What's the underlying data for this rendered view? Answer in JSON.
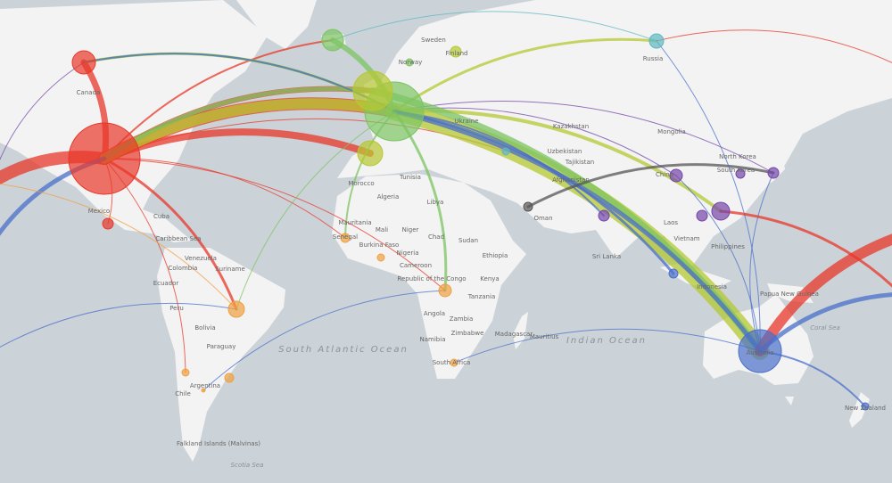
{
  "colors": {
    "ocean": "#ccd3d8",
    "land": "#f3f3f3",
    "red": "#e8372a",
    "yellow": "#b6c832",
    "green": "#7cc462",
    "blue": "#4a6fc9",
    "purple": "#7445a8",
    "orange": "#f0a040",
    "teal": "#5fb8c2",
    "grey": "#555555"
  },
  "nodes": [
    {
      "id": "usa",
      "color": "red",
      "size": 40
    },
    {
      "id": "canada",
      "color": "red",
      "size": 13
    },
    {
      "id": "iceland",
      "color": "green",
      "size": 12
    },
    {
      "id": "europe",
      "color": "green",
      "size": 33
    },
    {
      "id": "europe2",
      "color": "yellow",
      "size": 22
    },
    {
      "id": "uk",
      "color": "yellow",
      "size": 14
    },
    {
      "id": "norway",
      "color": "green",
      "size": 4
    },
    {
      "id": "finland",
      "color": "yellow",
      "size": 6
    },
    {
      "id": "russia",
      "color": "teal",
      "size": 8
    },
    {
      "id": "china",
      "color": "purple",
      "size": 7
    },
    {
      "id": "korea",
      "color": "purple",
      "size": 5
    },
    {
      "id": "japan",
      "color": "purple",
      "size": 6
    },
    {
      "id": "taiwan",
      "color": "purple",
      "size": 10
    },
    {
      "id": "hongkong",
      "color": "purple",
      "size": 6
    },
    {
      "id": "india",
      "color": "purple",
      "size": 6
    },
    {
      "id": "mexico",
      "color": "red",
      "size": 6
    },
    {
      "id": "brazil",
      "color": "orange",
      "size": 9
    },
    {
      "id": "chile",
      "color": "orange",
      "size": 4
    },
    {
      "id": "uruguay",
      "color": "orange",
      "size": 5
    },
    {
      "id": "argentina",
      "color": "orange",
      "size": 2
    },
    {
      "id": "senegal",
      "color": "orange",
      "size": 5
    },
    {
      "id": "ghana",
      "color": "orange",
      "size": 4
    },
    {
      "id": "congo",
      "color": "orange",
      "size": 7
    },
    {
      "id": "southafrica",
      "color": "orange",
      "size": 4
    },
    {
      "id": "australia",
      "color": "blue",
      "size": 24
    },
    {
      "id": "newzealand",
      "color": "blue",
      "size": 4
    },
    {
      "id": "malaysia",
      "color": "blue",
      "size": 5
    },
    {
      "id": "iran",
      "color": "grey",
      "size": 5
    },
    {
      "id": "turkey",
      "color": "teal",
      "size": 4
    }
  ],
  "flows": [
    {
      "from": "usa",
      "to": "europe",
      "color": "red",
      "weight": 14
    },
    {
      "from": "usa",
      "to": "uk",
      "color": "red",
      "weight": 8
    },
    {
      "from": "usa",
      "to": "europe2",
      "color": "red",
      "weight": 6
    },
    {
      "from": "usa",
      "to": "iceland",
      "color": "red",
      "weight": 2
    },
    {
      "from": "usa",
      "to": "canada",
      "color": "red",
      "weight": 7
    },
    {
      "from": "usa",
      "to": "west-edge",
      "color": "red",
      "weight": 14
    },
    {
      "from": "usa",
      "to": "brazil",
      "color": "red",
      "weight": 3
    },
    {
      "from": "usa",
      "to": "mexico",
      "color": "red",
      "weight": 1
    },
    {
      "from": "usa",
      "to": "senegal",
      "color": "red",
      "weight": 1
    },
    {
      "from": "usa",
      "to": "congo",
      "color": "red",
      "weight": 1
    },
    {
      "from": "usa",
      "to": "chile",
      "color": "red",
      "weight": 1
    },
    {
      "from": "usa",
      "to": "turkey",
      "color": "red",
      "weight": 1
    },
    {
      "from": "europe",
      "to": "usa",
      "color": "yellow",
      "weight": 12
    },
    {
      "from": "europe2",
      "to": "usa",
      "color": "green",
      "weight": 5
    },
    {
      "from": "europe",
      "to": "canada",
      "color": "yellow",
      "weight": 3
    },
    {
      "from": "europe",
      "to": "canada",
      "color": "green",
      "weight": 2
    },
    {
      "from": "canada",
      "to": "europe",
      "color": "blue",
      "weight": 2
    },
    {
      "from": "iceland",
      "to": "europe",
      "color": "green",
      "weight": 6
    },
    {
      "from": "europe",
      "to": "russia",
      "color": "yellow",
      "weight": 3
    },
    {
      "from": "europe",
      "to": "china",
      "color": "purple",
      "weight": 1
    },
    {
      "from": "europe",
      "to": "japan",
      "color": "purple",
      "weight": 1
    },
    {
      "from": "europe",
      "to": "taiwan",
      "color": "yellow",
      "weight": 4
    },
    {
      "from": "europe",
      "to": "australia",
      "color": "yellow",
      "weight": 20
    },
    {
      "from": "europe2",
      "to": "australia",
      "color": "green",
      "weight": 8
    },
    {
      "from": "europe",
      "to": "australia",
      "color": "blue",
      "weight": 5
    },
    {
      "from": "europe",
      "to": "malaysia",
      "color": "blue",
      "weight": 3
    },
    {
      "from": "europe",
      "to": "senegal",
      "color": "green",
      "weight": 2
    },
    {
      "from": "europe",
      "to": "congo",
      "color": "green",
      "weight": 3
    },
    {
      "from": "europe",
      "to": "brazil",
      "color": "green",
      "weight": 1
    },
    {
      "from": "europe",
      "to": "india",
      "color": "blue",
      "weight": 2
    },
    {
      "from": "iran",
      "to": "japan",
      "color": "grey",
      "weight": 3
    },
    {
      "from": "australia",
      "to": "east-edge-high",
      "color": "red",
      "weight": 12
    },
    {
      "from": "australia",
      "to": "east-edge-low",
      "color": "blue",
      "weight": 5
    },
    {
      "from": "australia",
      "to": "newzealand",
      "color": "blue",
      "weight": 2
    },
    {
      "from": "australia",
      "to": "china",
      "color": "blue",
      "weight": 1
    },
    {
      "from": "australia",
      "to": "russia",
      "color": "blue",
      "weight": 1
    },
    {
      "from": "australia",
      "to": "japan",
      "color": "blue",
      "weight": 1
    },
    {
      "from": "southafrica",
      "to": "australia",
      "color": "blue",
      "weight": 1
    },
    {
      "from": "west-edge-low",
      "to": "usa",
      "color": "blue",
      "weight": 5
    },
    {
      "from": "canada",
      "to": "west-edge",
      "color": "purple",
      "weight": 1
    },
    {
      "from": "brazil",
      "to": "west-edge",
      "color": "orange",
      "weight": 1
    },
    {
      "from": "west-edge-south",
      "to": "brazil",
      "color": "blue",
      "weight": 1
    },
    {
      "from": "argentina",
      "to": "congo",
      "color": "blue",
      "weight": 1
    },
    {
      "from": "russia",
      "to": "east-edge-top",
      "color": "red",
      "weight": 1
    },
    {
      "from": "iceland",
      "to": "russia",
      "color": "teal",
      "weight": 1
    },
    {
      "from": "taiwan",
      "to": "east-edge-low",
      "color": "red",
      "weight": 3
    }
  ],
  "labels": [
    "Canada",
    "Mexico",
    "Cuba",
    "Caribbean Sea",
    "Venezuela",
    "Colombia",
    "Suriname",
    "Ecuador",
    "Peru",
    "Bolivia",
    "Paraguay",
    "Argentina",
    "Chile",
    "Falkland Islands (Malvinas)",
    "Sweden",
    "Norway",
    "Finland",
    "Russia",
    "Mongolia",
    "Kazakhstan",
    "Uzbekistan",
    "Tajikistan",
    "Afghanistan",
    "Ukraine",
    "North Korea",
    "South Korea",
    "China",
    "Philippines",
    "Laos",
    "Vietnam",
    "Indonesia",
    "Papua New Guinea",
    "Australia",
    "New Zealand",
    "Madagascar",
    "Mauritius",
    "South Africa",
    "Namibia",
    "Zimbabwe",
    "Zambia",
    "Tanzania",
    "Kenya",
    "Ethiopia",
    "Angola",
    "Sudan",
    "Chad",
    "Niger",
    "Mali",
    "Mauritania",
    "Morocco",
    "Algeria",
    "Tunisia",
    "Libya",
    "Nigeria",
    "Cameroon",
    "Republic of the Congo",
    "Burkina Faso",
    "Senegal",
    "Oman",
    "Sri Lanka"
  ],
  "oceans": [
    "South Atlantic Ocean",
    "Indian Ocean"
  ],
  "seas": [
    "Scotia Sea",
    "Coral Sea"
  ]
}
